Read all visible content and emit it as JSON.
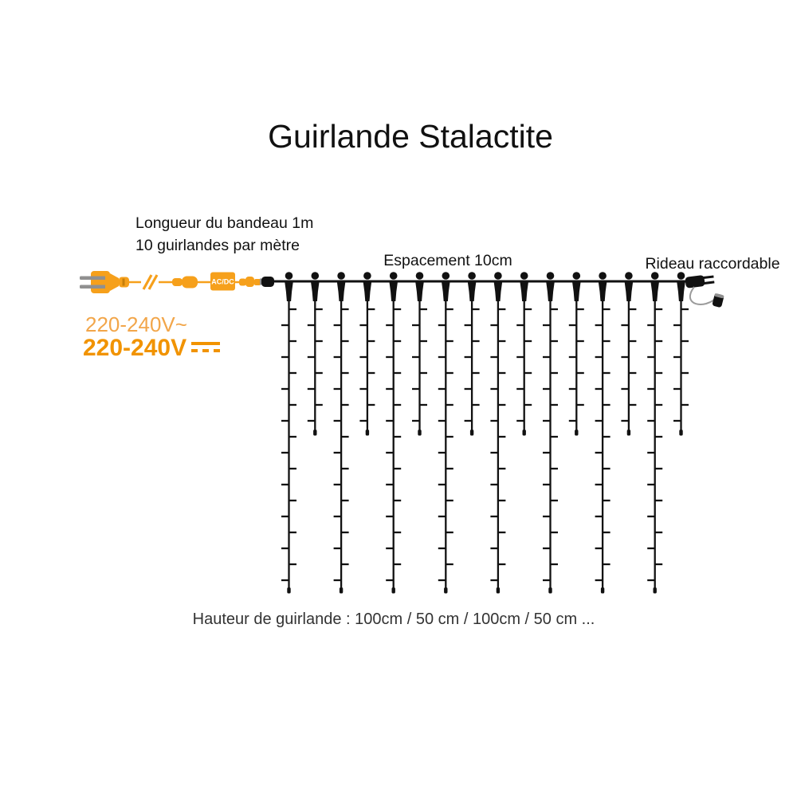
{
  "title": "Guirlande Stalactite",
  "labels": {
    "band_length": "Longueur du bandeau 1m",
    "garlands_per_meter": "10 guirlandes par mètre",
    "spacing": "Espacement 10cm",
    "connectable": "Rideau raccordable",
    "height_info": "Hauteur de guirlande : 100cm / 50 cm / 100cm / 50 cm ..."
  },
  "power": {
    "voltage_ac": "220-240V~",
    "voltage_dc": "220-240V",
    "dc_symbol_icon": "solid-line-over-dashed-line",
    "adapter_label": "AC/DC"
  },
  "diagram": {
    "strands": {
      "count": 16,
      "pattern": [
        "long",
        "short"
      ],
      "long_led_count": 18,
      "short_led_count": 8,
      "long_height_label": "100cm",
      "short_height_label": "50 cm",
      "spacing_label": "10cm"
    }
  },
  "colors": {
    "background": "#ffffff",
    "ink": "#111111",
    "orange": "#F6A01B",
    "orange_dark": "#C67F0A",
    "orange_light": "#F2A64A",
    "orange_bold": "#F19300",
    "grey": "#909090",
    "cable_grey": "#9b9b9b"
  }
}
